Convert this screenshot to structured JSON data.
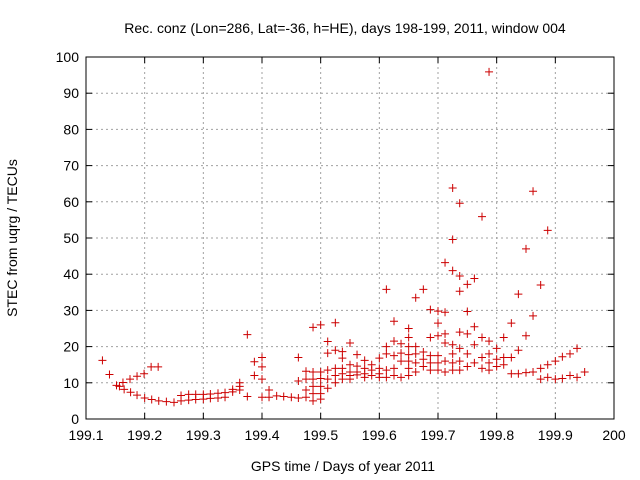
{
  "chart_data": {
    "type": "scatter",
    "title": "Rec. conz (Lon=286, Lat=-36, h=HE), days 198-199, 2011, window 004",
    "xlabel": "GPS time / Days of year 2011",
    "ylabel": "STEC from uqrg / TECUs",
    "xlim": [
      199.1,
      200
    ],
    "ylim": [
      0,
      100
    ],
    "xticks": [
      "199.1",
      "199.2",
      "199.3",
      "199.4",
      "199.5",
      "199.6",
      "199.7",
      "199.8",
      "199.9",
      "200"
    ],
    "yticks": [
      "0",
      "10",
      "20",
      "30",
      "40",
      "50",
      "60",
      "70",
      "80",
      "90",
      "100"
    ],
    "grid": true,
    "marker": "+",
    "marker_color": "#cc0000",
    "series": [
      {
        "name": "STEC",
        "points": [
          [
            199.128,
            16.2
          ],
          [
            199.14,
            12.3
          ],
          [
            199.152,
            9.3
          ],
          [
            199.163,
            10.1
          ],
          [
            199.175,
            11.0
          ],
          [
            199.187,
            11.8
          ],
          [
            199.199,
            12.5
          ],
          [
            199.211,
            14.4
          ],
          [
            199.223,
            14.4
          ],
          [
            199.157,
            9.0
          ],
          [
            199.165,
            8.2
          ],
          [
            199.176,
            7.4
          ],
          [
            199.187,
            6.6
          ],
          [
            199.2,
            5.8
          ],
          [
            199.212,
            5.4
          ],
          [
            199.224,
            5.0
          ],
          [
            199.237,
            4.8
          ],
          [
            199.25,
            4.6
          ],
          [
            199.262,
            5.0
          ],
          [
            199.262,
            6.5
          ],
          [
            199.275,
            5.2
          ],
          [
            199.275,
            6.8
          ],
          [
            199.287,
            5.4
          ],
          [
            199.287,
            6.8
          ],
          [
            199.3,
            5.5
          ],
          [
            199.3,
            6.8
          ],
          [
            199.312,
            5.7
          ],
          [
            199.312,
            6.9
          ],
          [
            199.325,
            5.8
          ],
          [
            199.325,
            7.1
          ],
          [
            199.337,
            6.0
          ],
          [
            199.337,
            7.3
          ],
          [
            199.35,
            7.5
          ],
          [
            199.35,
            8.2
          ],
          [
            199.362,
            8.0
          ],
          [
            199.362,
            9.0
          ],
          [
            199.362,
            10.0
          ],
          [
            199.375,
            23.3
          ],
          [
            199.375,
            6.2
          ],
          [
            199.387,
            12.0
          ],
          [
            199.387,
            15.8
          ],
          [
            199.4,
            17.0
          ],
          [
            199.4,
            14.4
          ],
          [
            199.4,
            11.0
          ],
          [
            199.4,
            6.0
          ],
          [
            199.412,
            8.0
          ],
          [
            199.412,
            6.0
          ],
          [
            199.425,
            6.4
          ],
          [
            199.437,
            6.2
          ],
          [
            199.45,
            6.0
          ],
          [
            199.462,
            17.0
          ],
          [
            199.462,
            10.5
          ],
          [
            199.462,
            5.8
          ],
          [
            199.475,
            13.2
          ],
          [
            199.475,
            11.0
          ],
          [
            199.475,
            8.0
          ],
          [
            199.475,
            6.0
          ],
          [
            199.487,
            25.3
          ],
          [
            199.487,
            13.0
          ],
          [
            199.487,
            11.0
          ],
          [
            199.487,
            9.0
          ],
          [
            199.487,
            7.0
          ],
          [
            199.487,
            5.0
          ],
          [
            199.5,
            26.0
          ],
          [
            199.5,
            13.0
          ],
          [
            199.5,
            11.2
          ],
          [
            199.5,
            9.0
          ],
          [
            199.5,
            7.0
          ],
          [
            199.5,
            5.5
          ],
          [
            199.512,
            21.4
          ],
          [
            199.512,
            18.2
          ],
          [
            199.512,
            13.5
          ],
          [
            199.512,
            11.0
          ],
          [
            199.512,
            8.5
          ],
          [
            199.525,
            26.6
          ],
          [
            199.525,
            19.0
          ],
          [
            199.525,
            14.0
          ],
          [
            199.525,
            12.0
          ],
          [
            199.525,
            10.0
          ],
          [
            199.537,
            18.6
          ],
          [
            199.537,
            16.8
          ],
          [
            199.537,
            14.0
          ],
          [
            199.537,
            12.5
          ],
          [
            199.537,
            11.0
          ],
          [
            199.55,
            21.0
          ],
          [
            199.55,
            15.0
          ],
          [
            199.55,
            13.0
          ],
          [
            199.55,
            12.0
          ],
          [
            199.55,
            11.0
          ],
          [
            199.562,
            17.8
          ],
          [
            199.562,
            14.6
          ],
          [
            199.562,
            13.0
          ],
          [
            199.562,
            12.2
          ],
          [
            199.575,
            16.2
          ],
          [
            199.575,
            14.0
          ],
          [
            199.575,
            12.5
          ],
          [
            199.575,
            11.5
          ],
          [
            199.587,
            15.0
          ],
          [
            199.587,
            13.5
          ],
          [
            199.587,
            12.0
          ],
          [
            199.6,
            16.8
          ],
          [
            199.6,
            14.0
          ],
          [
            199.6,
            12.5
          ],
          [
            199.6,
            11.5
          ],
          [
            199.612,
            35.8
          ],
          [
            199.612,
            20.0
          ],
          [
            199.612,
            18.0
          ],
          [
            199.612,
            13.5
          ],
          [
            199.612,
            11.5
          ],
          [
            199.625,
            27.0
          ],
          [
            199.625,
            21.5
          ],
          [
            199.625,
            17.5
          ],
          [
            199.625,
            14.0
          ],
          [
            199.625,
            12.0
          ],
          [
            199.637,
            20.8
          ],
          [
            199.637,
            18.2
          ],
          [
            199.637,
            16.0
          ],
          [
            199.637,
            11.5
          ],
          [
            199.65,
            25.0
          ],
          [
            199.65,
            22.5
          ],
          [
            199.65,
            20.0
          ],
          [
            199.65,
            17.8
          ],
          [
            199.65,
            16.0
          ],
          [
            199.65,
            14.0
          ],
          [
            199.65,
            12.0
          ],
          [
            199.662,
            33.5
          ],
          [
            199.662,
            20.0
          ],
          [
            199.662,
            18.0
          ],
          [
            199.662,
            15.5
          ],
          [
            199.662,
            13.0
          ],
          [
            199.675,
            35.8
          ],
          [
            199.675,
            18.5
          ],
          [
            199.675,
            16.5
          ],
          [
            199.675,
            14.5
          ],
          [
            199.687,
            30.2
          ],
          [
            199.687,
            22.5
          ],
          [
            199.687,
            17.5
          ],
          [
            199.687,
            15.5
          ],
          [
            199.687,
            13.5
          ],
          [
            199.7,
            29.8
          ],
          [
            199.7,
            26.5
          ],
          [
            199.7,
            23.0
          ],
          [
            199.7,
            17.5
          ],
          [
            199.7,
            15.5
          ],
          [
            199.7,
            13.5
          ],
          [
            199.712,
            43.2
          ],
          [
            199.712,
            29.5
          ],
          [
            199.712,
            23.5
          ],
          [
            199.712,
            21.0
          ],
          [
            199.712,
            16.0
          ],
          [
            199.712,
            13.0
          ],
          [
            199.725,
            63.8
          ],
          [
            199.725,
            49.6
          ],
          [
            199.725,
            41.0
          ],
          [
            199.725,
            20.5
          ],
          [
            199.725,
            18.0
          ],
          [
            199.725,
            15.5
          ],
          [
            199.725,
            13.5
          ],
          [
            199.737,
            59.6
          ],
          [
            199.737,
            39.5
          ],
          [
            199.737,
            35.3
          ],
          [
            199.737,
            24.0
          ],
          [
            199.737,
            19.5
          ],
          [
            199.737,
            16.0
          ],
          [
            199.737,
            13.5
          ],
          [
            199.75,
            37.2
          ],
          [
            199.75,
            29.7
          ],
          [
            199.75,
            23.5
          ],
          [
            199.75,
            18.0
          ],
          [
            199.75,
            14.5
          ],
          [
            199.762,
            38.8
          ],
          [
            199.762,
            25.5
          ],
          [
            199.762,
            20.5
          ],
          [
            199.762,
            15.5
          ],
          [
            199.775,
            55.9
          ],
          [
            199.775,
            22.5
          ],
          [
            199.775,
            17.0
          ],
          [
            199.775,
            14.0
          ],
          [
            199.787,
            95.9
          ],
          [
            199.787,
            21.5
          ],
          [
            199.787,
            18.0
          ],
          [
            199.787,
            15.5
          ],
          [
            199.787,
            13.5
          ],
          [
            199.8,
            19.5
          ],
          [
            199.8,
            16.5
          ],
          [
            199.8,
            14.5
          ],
          [
            199.812,
            22.5
          ],
          [
            199.812,
            17.0
          ],
          [
            199.812,
            15.0
          ],
          [
            199.825,
            26.5
          ],
          [
            199.825,
            17.0
          ],
          [
            199.825,
            12.5
          ],
          [
            199.837,
            34.5
          ],
          [
            199.837,
            19.0
          ],
          [
            199.837,
            12.5
          ],
          [
            199.85,
            47.0
          ],
          [
            199.85,
            23.0
          ],
          [
            199.85,
            12.8
          ],
          [
            199.862,
            62.9
          ],
          [
            199.862,
            28.5
          ],
          [
            199.862,
            13.0
          ],
          [
            199.875,
            37.0
          ],
          [
            199.875,
            14.0
          ],
          [
            199.875,
            11.0
          ],
          [
            199.887,
            52.1
          ],
          [
            199.887,
            15.0
          ],
          [
            199.887,
            11.5
          ],
          [
            199.9,
            16.0
          ],
          [
            199.9,
            11.0
          ],
          [
            199.912,
            17.2
          ],
          [
            199.912,
            11.2
          ],
          [
            199.925,
            18.0
          ],
          [
            199.925,
            12.0
          ],
          [
            199.937,
            19.5
          ],
          [
            199.937,
            11.5
          ],
          [
            199.95,
            13.0
          ]
        ]
      }
    ]
  }
}
